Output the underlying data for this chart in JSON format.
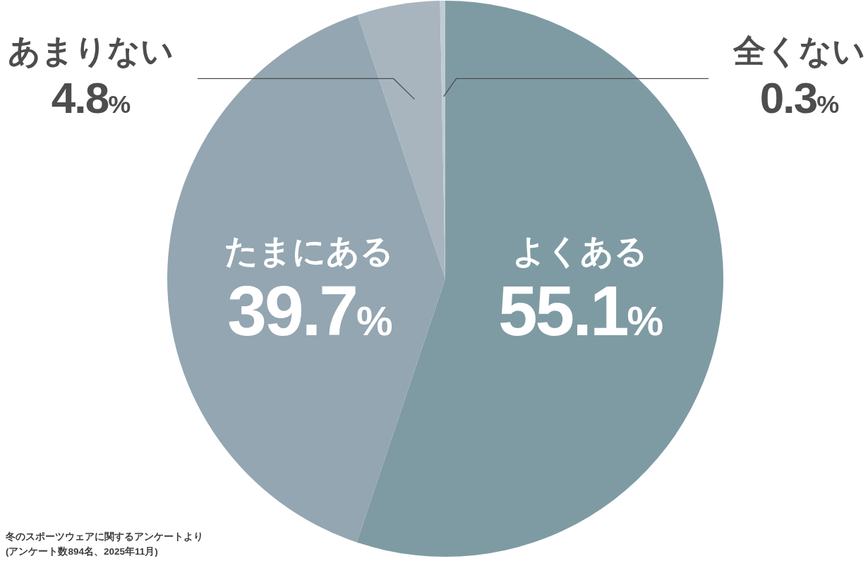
{
  "chart_data": {
    "type": "pie",
    "categories": [
      "よくある",
      "たまにある",
      "あまりない",
      "全くない"
    ],
    "values": [
      55.1,
      39.7,
      4.8,
      0.3
    ],
    "colors": [
      "#7e9ba3",
      "#93a6b1",
      "#a8b5bf",
      "#c0ccd3"
    ],
    "value_labels": [
      "55.1%",
      "39.7%",
      "4.8%",
      "0.3%"
    ],
    "annotations": [
      "冬のスポーツウェアに関するアンケートより",
      "(アンケート数894名、2025年11月)"
    ]
  }
}
